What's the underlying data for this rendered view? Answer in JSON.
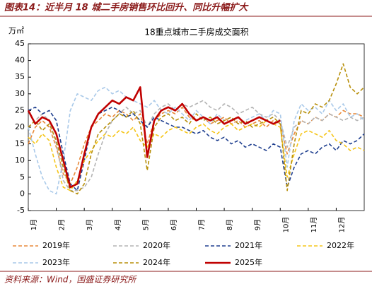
{
  "header": "图表14：近半月 18 城二手房销售环比回升、同比升幅扩大",
  "source": "资料来源：Wind，国盛证券研究所",
  "chart_data": {
    "type": "line",
    "title": "18重点城市二手房成交面积",
    "ylabel": "万㎡",
    "xlim": [
      0,
      12
    ],
    "xticks": [
      {
        "value": 0,
        "label": "1月"
      },
      {
        "value": 1,
        "label": "2月"
      },
      {
        "value": 2,
        "label": "3月"
      },
      {
        "value": 3,
        "label": "4月"
      },
      {
        "value": 4,
        "label": "5月"
      },
      {
        "value": 5,
        "label": "6月"
      },
      {
        "value": 6,
        "label": "7月"
      },
      {
        "value": 7,
        "label": "8月"
      },
      {
        "value": 8,
        "label": "9月"
      },
      {
        "value": 9,
        "label": "10月"
      },
      {
        "value": 10,
        "label": "11月"
      },
      {
        "value": 11,
        "label": "12月"
      }
    ],
    "ylim": [
      -5,
      45
    ],
    "yticks": [
      -5,
      0,
      5,
      10,
      15,
      20,
      25,
      30,
      35,
      40,
      45
    ],
    "grid": false,
    "x": [
      0,
      0.25,
      0.5,
      0.75,
      1,
      1.25,
      1.5,
      1.75,
      2,
      2.25,
      2.5,
      2.75,
      3,
      3.25,
      3.5,
      3.75,
      4,
      4.25,
      4.5,
      4.75,
      5,
      5.25,
      5.5,
      5.75,
      6,
      6.25,
      6.5,
      6.75,
      7,
      7.25,
      7.5,
      7.75,
      8,
      8.25,
      8.5,
      8.75,
      9,
      9.25,
      9.5,
      9.75,
      10,
      10.25,
      10.5,
      10.75,
      11,
      11.25,
      11.5,
      11.75,
      12
    ],
    "series": [
      {
        "name": "2019年",
        "color": "#e8893a",
        "dashed": true,
        "width": 1.6,
        "values": [
          15,
          20,
          22,
          20,
          14,
          6,
          3,
          8,
          15,
          20,
          22,
          24,
          23,
          25,
          24,
          22,
          24,
          15,
          22,
          24,
          25,
          24,
          26,
          23,
          22,
          23,
          21,
          22,
          23,
          21,
          22,
          20,
          21,
          22,
          20,
          22,
          21,
          12,
          18,
          22,
          21,
          23,
          22,
          24,
          23,
          25,
          24,
          24,
          23
        ]
      },
      {
        "name": "2020年",
        "color": "#b4b4b4",
        "dashed": true,
        "width": 1.6,
        "values": [
          20,
          22,
          24,
          22,
          15,
          4,
          1,
          1,
          2,
          5,
          12,
          18,
          22,
          24,
          26,
          24,
          25,
          20,
          24,
          26,
          27,
          25,
          27,
          26,
          27,
          28,
          26,
          25,
          27,
          26,
          24,
          25,
          26,
          24,
          23,
          24,
          22,
          14,
          20,
          22,
          21,
          23,
          22,
          24,
          23,
          22,
          23,
          22,
          23
        ]
      },
      {
        "name": "2021年",
        "color": "#1f3f8f",
        "dashed": true,
        "width": 1.6,
        "values": [
          25,
          26,
          24,
          25,
          22,
          12,
          3,
          1,
          10,
          20,
          24,
          25,
          26,
          25,
          23,
          24,
          22,
          20,
          23,
          22,
          21,
          20,
          20,
          19,
          18,
          19,
          17,
          16,
          17,
          15,
          16,
          14,
          15,
          14,
          13,
          15,
          14,
          2,
          8,
          12,
          13,
          12,
          14,
          15,
          13,
          16,
          15,
          16,
          18
        ]
      },
      {
        "name": "2022年",
        "color": "#f5c518",
        "dashed": true,
        "width": 1.6,
        "values": [
          17,
          15,
          18,
          16,
          8,
          2,
          1,
          4,
          10,
          13,
          16,
          18,
          17,
          19,
          18,
          20,
          16,
          14,
          18,
          17,
          19,
          20,
          19,
          18,
          20,
          21,
          19,
          18,
          20,
          21,
          19,
          20,
          21,
          20,
          22,
          21,
          20,
          5,
          12,
          18,
          19,
          18,
          17,
          19,
          16,
          15,
          13,
          14,
          13
        ]
      },
      {
        "name": "2023年",
        "color": "#a9c9e9",
        "dashed": true,
        "width": 1.6,
        "values": [
          20,
          12,
          5,
          1,
          0,
          10,
          25,
          30,
          29,
          28,
          31,
          32,
          30,
          31,
          29,
          28,
          27,
          26,
          28,
          25,
          24,
          26,
          24,
          22,
          25,
          23,
          21,
          24,
          22,
          23,
          21,
          22,
          23,
          24,
          22,
          25,
          24,
          8,
          22,
          27,
          25,
          26,
          24,
          28,
          25,
          27,
          23,
          24,
          22
        ]
      },
      {
        "name": "2024年",
        "color": "#b8900c",
        "dashed": true,
        "width": 1.6,
        "values": [
          20,
          22,
          19,
          21,
          16,
          8,
          1,
          0,
          3,
          12,
          18,
          20,
          22,
          24,
          23,
          25,
          21,
          7,
          20,
          23,
          24,
          22,
          23,
          21,
          24,
          22,
          23,
          21,
          22,
          23,
          21,
          22,
          20,
          21,
          22,
          23,
          21,
          1,
          15,
          25,
          24,
          27,
          26,
          28,
          33,
          39,
          32,
          30,
          32
        ]
      },
      {
        "name": "2025年",
        "color": "#c00000",
        "dashed": false,
        "width": 2.6,
        "values": [
          25,
          21,
          23,
          22,
          18,
          10,
          2,
          3,
          12,
          20,
          24,
          26,
          28,
          27,
          29,
          28,
          32,
          11,
          22,
          25,
          26,
          25,
          27,
          24,
          22,
          23,
          22,
          23,
          21,
          22,
          23,
          21,
          22,
          23,
          22,
          21,
          22,
          null,
          null,
          null,
          null,
          null,
          null,
          null,
          null,
          null,
          null,
          null,
          null
        ]
      }
    ]
  }
}
